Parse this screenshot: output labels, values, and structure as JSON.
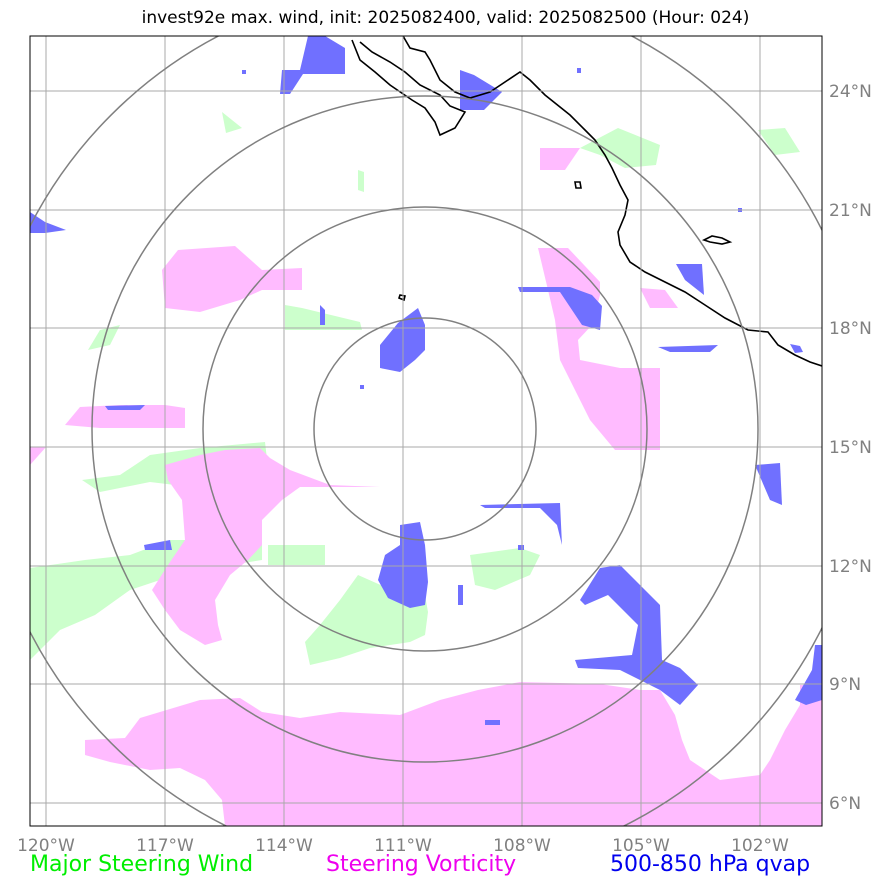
{
  "title": "invest92e max. wind, init: 2025082400, valid: 2025082500 (Hour: 024)",
  "colors": {
    "major_steering_wind": "#00ee00",
    "steering_vorticity": "#ee00ee",
    "qvap": "#0000ee",
    "wind_fill": "#ccffcc",
    "vorticity_fill": "#ffbbff",
    "qvap_fill": "#7070ff",
    "grid": "#a8a8a8",
    "range_ring": "#808080",
    "coast": "#000000"
  },
  "legend": {
    "wind": "Major Steering Wind",
    "vorticity": "Steering Vorticity",
    "qvap": "500-850 hPa qvap"
  },
  "axes": {
    "lon_labels": [
      "120°W",
      "117°W",
      "114°W",
      "111°W",
      "108°W",
      "105°W",
      "102°W"
    ],
    "lat_labels": [
      "24°N",
      "21°N",
      "18°N",
      "15°N",
      "12°N",
      "9°N",
      "6°N"
    ],
    "lon_range": [
      -120.4,
      -100.3
    ],
    "lat_range": [
      5.4,
      25.4
    ]
  },
  "storm_center": {
    "lon": -110.6,
    "lat": 15.4
  },
  "range_rings_deg": [
    2.8,
    5.6,
    8.4,
    11.2
  ]
}
